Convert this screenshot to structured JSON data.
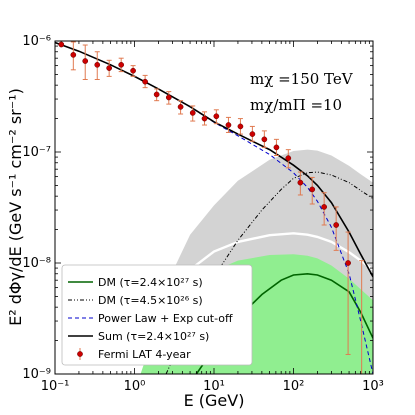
{
  "chart_data": {
    "type": "line",
    "xscale": "log",
    "yscale": "log",
    "xlim": [
      0.1,
      1000
    ],
    "ylim": [
      1e-09,
      1e-06
    ],
    "xlabel": "E (GeV)",
    "ylabel": "E² dΦγ/dE (GeV s⁻¹ cm⁻² sr⁻¹)",
    "x_ticks": [
      {
        "value": 0.1,
        "label": "10⁻¹"
      },
      {
        "value": 1,
        "label": "10⁰"
      },
      {
        "value": 10,
        "label": "10¹"
      },
      {
        "value": 100,
        "label": "10²"
      },
      {
        "value": 1000,
        "label": "10³"
      }
    ],
    "y_ticks": [
      {
        "value": 1e-09,
        "label": "10⁻⁹"
      },
      {
        "value": 1e-08,
        "label": "10⁻⁸"
      },
      {
        "value": 1e-07,
        "label": "10⁻⁷"
      },
      {
        "value": 1e-06,
        "label": "10⁻⁶"
      }
    ],
    "annotations": [
      "mχ =150 TeV",
      "mχ/mΠ =10"
    ],
    "legend_position": "lower-left",
    "colors": {
      "green_band": "#90ee90",
      "gray_band": "#d3d3d3",
      "dm_green": "#006400",
      "power_law_blue": "#0000cc",
      "data_red": "#cc0000",
      "errorbar": "#e07a50"
    },
    "bands": [
      {
        "name": "green-band",
        "color": "#90ee90",
        "x": [
          1.15,
          2,
          5,
          10,
          20,
          50,
          100,
          150,
          200,
          300,
          500,
          700,
          1000
        ],
        "upper": [
          1e-09,
          2.2e-09,
          5.8e-09,
          8.5e-09,
          1.05e-08,
          1.18e-08,
          1.2e-08,
          1.16e-08,
          1.1e-08,
          9.5e-09,
          7.2e-09,
          5.8e-09,
          4.6e-09
        ]
      },
      {
        "name": "gray-band",
        "color": "#d3d3d3",
        "x": [
          1.15,
          2,
          5,
          10,
          20,
          50,
          100,
          150,
          200,
          300,
          500,
          700,
          1000
        ],
        "upper": [
          1e-09,
          4.5e-09,
          1.8e-08,
          3.3e-08,
          5.5e-08,
          8.5e-08,
          1.02e-07,
          1.05e-07,
          1.03e-07,
          9.3e-08,
          7.5e-08,
          6.3e-08,
          5.3e-08
        ]
      }
    ],
    "white_line": {
      "x": [
        1.15,
        2,
        5,
        10,
        20,
        50,
        100,
        150,
        200,
        300,
        500,
        700,
        1000
      ],
      "y": [
        1e-09,
        3.3e-09,
        8.7e-09,
        1.27e-08,
        1.55e-08,
        1.78e-08,
        1.85e-08,
        1.8e-08,
        1.72e-08,
        1.55e-08,
        1.25e-08,
        1.05e-08,
        8.7e-09
      ]
    },
    "series": [
      {
        "name": "DM (τ=2.4×10²⁷ s)",
        "style": "solid",
        "color": "#006400",
        "x": [
          6,
          10,
          20,
          40,
          70,
          100,
          150,
          200,
          300,
          500,
          700,
          1000
        ],
        "y": [
          1e-09,
          1.7e-09,
          3.2e-09,
          5.2e-09,
          7e-09,
          7.8e-09,
          8e-09,
          7.8e-09,
          7e-09,
          5.5e-09,
          3.6e-09,
          2.1e-09
        ]
      },
      {
        "name": "DM (τ=4.5×10²⁶ s)",
        "style": "dashdotdot",
        "color": "#000000",
        "x": [
          2.5,
          5,
          10,
          20,
          40,
          70,
          100,
          150,
          200,
          300,
          500,
          700,
          1000
        ],
        "y": [
          1e-09,
          3e-09,
          7.5e-09,
          1.6e-08,
          3e-08,
          4.6e-08,
          5.8e-08,
          6.5e-08,
          6.6e-08,
          6.2e-08,
          5.3e-08,
          4.5e-08,
          3.8e-08
        ]
      },
      {
        "name": "Power Law + Exp cut-off",
        "style": "dashed",
        "color": "#0000cc",
        "x": [
          0.1,
          0.2,
          0.5,
          1,
          2,
          5,
          10,
          20,
          50,
          100,
          150,
          200,
          300,
          500,
          700,
          1000
        ],
        "y": [
          9.7e-07,
          8.1e-07,
          6.1e-07,
          4.8e-07,
          3.7e-07,
          2.55e-07,
          1.85e-07,
          1.4e-07,
          9.5e-08,
          6.5e-08,
          4.8e-08,
          3.6e-08,
          2.1e-08,
          8e-09,
          3e-09,
          1e-09
        ]
      },
      {
        "name": "Sum (τ=2.4×10²⁷ s)",
        "style": "solid",
        "color": "#000000",
        "x": [
          0.1,
          0.2,
          0.5,
          1,
          2,
          5,
          10,
          20,
          50,
          100,
          150,
          200,
          300,
          500,
          700,
          1000
        ],
        "y": [
          9.7e-07,
          8.1e-07,
          6.1e-07,
          4.8e-07,
          3.7e-07,
          2.56e-07,
          1.87e-07,
          1.45e-07,
          1.05e-07,
          7.6e-08,
          6.1e-08,
          5e-08,
          3.5e-08,
          1.9e-08,
          1.2e-08,
          7.5e-09
        ]
      }
    ],
    "data_points": {
      "name": "Fermi LAT 4-year",
      "x": [
        0.12,
        0.17,
        0.24,
        0.34,
        0.48,
        0.68,
        0.96,
        1.36,
        1.9,
        2.7,
        3.8,
        5.4,
        7.6,
        10.7,
        15.2,
        21.5,
        30.4,
        43,
        61,
        86,
        122,
        172,
        243,
        344,
        486
      ],
      "y": [
        9.3e-07,
        7.5e-07,
        6.6e-07,
        6.1e-07,
        5.7e-07,
        6.1e-07,
        5.4e-07,
        4.3e-07,
        3.3e-07,
        3.1e-07,
        2.55e-07,
        2.25e-07,
        2e-07,
        2.1e-07,
        1.75e-07,
        1.7e-07,
        1.45e-07,
        1.3e-07,
        1.1e-07,
        8.8e-08,
        5.3e-08,
        4.6e-08,
        3.2e-08,
        2.2e-08,
        1e-08
      ],
      "err_low": [
        9.3e-07,
        5.5e-07,
        4.5e-07,
        4.5e-07,
        4.8e-07,
        5.3e-07,
        4.8e-07,
        3.8e-07,
        2.9e-07,
        2.7e-07,
        2.2e-07,
        1.9e-07,
        1.75e-07,
        1.8e-07,
        1.5e-07,
        1.45e-07,
        1.25e-07,
        1.1e-07,
        9.3e-08,
        7.2e-08,
        4.1e-08,
        3.4e-08,
        2.2e-08,
        1.3e-08,
        1.5e-09
      ],
      "err_high": [
        1.02e-06,
        9.8e-07,
        9.2e-07,
        8e-07,
        6.7e-07,
        7e-07,
        6e-07,
        4.9e-07,
        3.7e-07,
        3.5e-07,
        2.9e-07,
        2.6e-07,
        2.3e-07,
        2.4e-07,
        2.05e-07,
        2e-07,
        1.7e-07,
        1.55e-07,
        1.3e-07,
        1.05e-07,
        6.6e-08,
        5.9e-08,
        4.3e-08,
        3.2e-08,
        1.9e-08
      ]
    },
    "extra_errorbar": {
      "x": 720,
      "low": 1e-09,
      "high": 1.05e-08
    }
  },
  "legend": {
    "items": [
      {
        "label": "DM (τ=2.4×10²⁷ s)",
        "key": "dm-solid-green"
      },
      {
        "label": "DM (τ=4.5×10²⁶ s)",
        "key": "dm-dashdot-black"
      },
      {
        "label": "Power Law + Exp cut-off",
        "key": "power-law-dashed-blue"
      },
      {
        "label": "Sum (τ=2.4×10²⁷ s)",
        "key": "sum-solid-black"
      },
      {
        "label": "Fermi LAT 4-year",
        "key": "fermi-data-points"
      }
    ]
  }
}
